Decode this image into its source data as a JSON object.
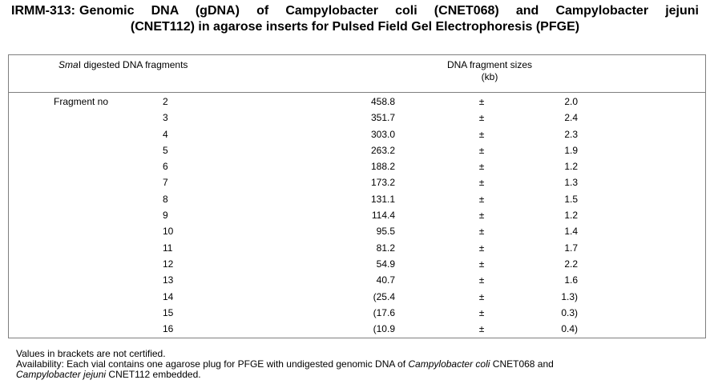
{
  "title": {
    "code": "IRMM-313:",
    "line1": "Genomic DNA (gDNA) of Campylobacter coli (CNET068) and Campylobacter jejuni",
    "line2": "(CNET112) in agarose inserts for Pulsed Field Gel Electrophoresis (PFGE)"
  },
  "table": {
    "col1_header_italic": "Sma",
    "col1_header_rest": "I digested DNA fragments",
    "col2_header_line1": "DNA fragment sizes",
    "col2_header_line2": "(kb)",
    "row_label": "Fragment no",
    "rows": [
      {
        "no": "2",
        "size": "458.8",
        "pm": "±",
        "unc": "2.0"
      },
      {
        "no": "3",
        "size": "351.7",
        "pm": "±",
        "unc": "2.4"
      },
      {
        "no": "4",
        "size": "303.0",
        "pm": "±",
        "unc": "2.3"
      },
      {
        "no": "5",
        "size": "263.2",
        "pm": "±",
        "unc": "1.9"
      },
      {
        "no": "6",
        "size": "188.2",
        "pm": "±",
        "unc": "1.2"
      },
      {
        "no": "7",
        "size": "173.2",
        "pm": "±",
        "unc": "1.3"
      },
      {
        "no": "8",
        "size": "131.1",
        "pm": "±",
        "unc": "1.5"
      },
      {
        "no": "9",
        "size": "114.4",
        "pm": "±",
        "unc": "1.2"
      },
      {
        "no": "10",
        "size": "95.5",
        "pm": "±",
        "unc": "1.4"
      },
      {
        "no": "11",
        "size": "81.2",
        "pm": "±",
        "unc": "1.7"
      },
      {
        "no": "12",
        "size": "54.9",
        "pm": "±",
        "unc": "2.2"
      },
      {
        "no": "13",
        "size": "40.7",
        "pm": "±",
        "unc": "1.6"
      },
      {
        "no": "14",
        "size": "(25.4",
        "pm": "±",
        "unc": "1.3)"
      },
      {
        "no": "15",
        "size": "(17.6",
        "pm": "±",
        "unc": "0.3)"
      },
      {
        "no": "16",
        "size": "(10.9",
        "pm": "±",
        "unc": "0.4)"
      }
    ]
  },
  "notes": {
    "line1": "Values in brackets are not certified.",
    "avail_a": "Availability: Each vial contains one agarose plug for PFGE with undigested genomic DNA of ",
    "avail_b": "Campylobacter coli",
    "avail_c": " CNET068 and",
    "avail_d": "Campylobacter jejuni",
    "avail_e": " CNET112 embedded."
  }
}
